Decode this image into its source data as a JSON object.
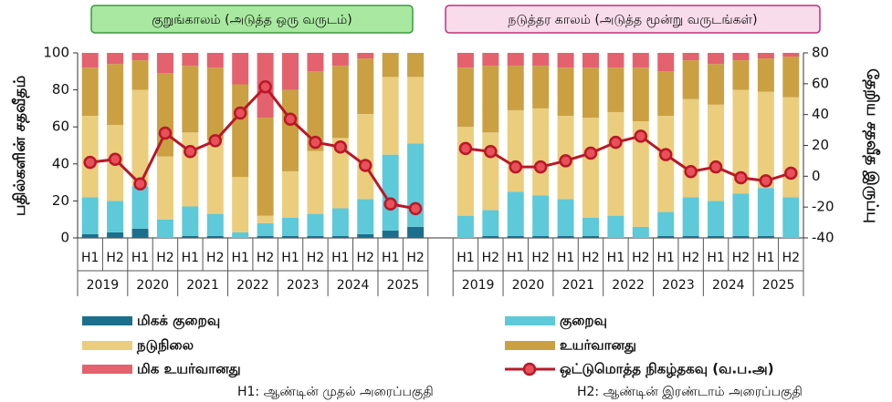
{
  "chart_data": {
    "type": "bar",
    "panels": [
      {
        "title": "குறுங்காலம் (அடுத்த ஒரு வருடம்)",
        "years": [
          "2019",
          "2020",
          "2021",
          "2022",
          "2023",
          "2024",
          "2025"
        ]
      },
      {
        "title": "நடுத்தர காலம் (அடுத்த மூன்று வருடங்கள்)",
        "years": [
          "2019",
          "2020",
          "2021",
          "2022",
          "2023",
          "2024",
          "2025"
        ]
      }
    ],
    "categories": [
      "H1",
      "H2",
      "H1",
      "H2",
      "H1",
      "H2",
      "H1",
      "H2",
      "H1",
      "H2",
      "H1",
      "H2",
      "H1",
      "H2",
      null,
      "H1",
      "H2",
      "H1",
      "H2",
      "H1",
      "H2",
      "H1",
      "H2",
      "H1",
      "H2",
      "H1",
      "H2",
      "H1",
      "H2"
    ],
    "ylabel": "பதில்களின் சதவீதம்",
    "y2label": "தேறிய சதவீத இருப்பு",
    "ylim": [
      0,
      100
    ],
    "yticks": [
      0,
      20,
      40,
      60,
      80,
      100
    ],
    "y2lim": [
      -40,
      80
    ],
    "y2ticks": [
      -40,
      -20,
      0,
      20,
      40,
      60,
      80
    ],
    "series": [
      {
        "name": "மிகக் குறைவு",
        "color": "#1b6f8c",
        "values": [
          2,
          3,
          5,
          0,
          1,
          1,
          0,
          1,
          1,
          1,
          1,
          2,
          4,
          6,
          null,
          0,
          1,
          1,
          1,
          1,
          1,
          0,
          0,
          1,
          1,
          1,
          1,
          1,
          0
        ]
      },
      {
        "name": "குறைவு",
        "color": "#5ec9d8",
        "values": [
          20,
          17,
          23,
          10,
          16,
          12,
          3,
          7,
          10,
          12,
          15,
          19,
          41,
          45,
          null,
          12,
          14,
          24,
          22,
          20,
          10,
          12,
          6,
          13,
          21,
          19,
          23,
          26,
          22
        ]
      },
      {
        "name": "நடுநிலை",
        "color": "#ebcd7e",
        "values": [
          44,
          41,
          52,
          34,
          40,
          40,
          30,
          4,
          25,
          34,
          38,
          46,
          42,
          36,
          null,
          48,
          42,
          44,
          47,
          45,
          54,
          56,
          57,
          52,
          53,
          52,
          56,
          52,
          54
        ]
      },
      {
        "name": "உயர்வானது",
        "color": "#caa043",
        "values": [
          26,
          33,
          16,
          45,
          36,
          39,
          50,
          53,
          44,
          43,
          39,
          30,
          13,
          13,
          null,
          32,
          36,
          24,
          23,
          26,
          27,
          24,
          29,
          24,
          21,
          22,
          16,
          18,
          22
        ]
      },
      {
        "name": "மிக உயர்வானது",
        "color": "#e3626e",
        "values": [
          8,
          6,
          4,
          11,
          7,
          8,
          17,
          35,
          20,
          10,
          7,
          3,
          0,
          0,
          null,
          8,
          7,
          7,
          7,
          8,
          8,
          8,
          8,
          10,
          4,
          6,
          4,
          3,
          2
        ]
      },
      {
        "name": "ஒட்டுமொத்த நிகழ்தகவு (வ.ப.அ)",
        "color": "#b81828",
        "type": "line",
        "axis": "y2",
        "values": [
          9,
          11,
          -5,
          28,
          16,
          23,
          41,
          58,
          37,
          22,
          19,
          7,
          -18,
          -21,
          null,
          18,
          16,
          6,
          6,
          10,
          15,
          22,
          26,
          14,
          3,
          6,
          -1,
          -3,
          2
        ]
      }
    ],
    "notes": [
      "H1: ஆண்டின் முதல் அரைப்பகுதி",
      "H2: ஆண்டின் இரண்டாம் அரைப்பகுதி"
    ]
  }
}
